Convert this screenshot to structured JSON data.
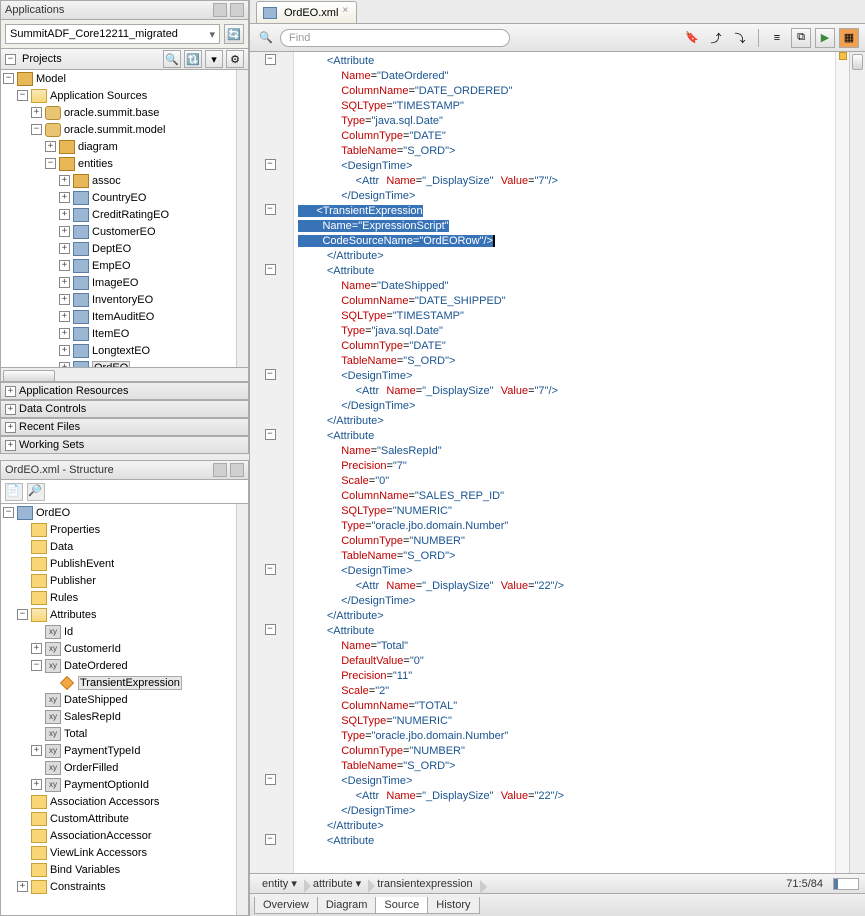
{
  "apps": {
    "title": "Applications",
    "combo": "SummitADF_Core12211_migrated"
  },
  "projects": {
    "title": "Projects",
    "nodes": {
      "model": "Model",
      "appsrc": "Application Sources",
      "base": "oracle.summit.base",
      "modelpkg": "oracle.summit.model",
      "diagram": "diagram",
      "entities": "entities",
      "assoc": "assoc",
      "country": "CountryEO",
      "credit": "CreditRatingEO",
      "customer": "CustomerEO",
      "dept": "DeptEO",
      "emp": "EmpEO",
      "image": "ImageEO",
      "inventory": "InventoryEO",
      "itemaudit": "ItemAuditEO",
      "item": "ItemEO",
      "longtext": "LongtextEO",
      "ord": "OrdEO"
    }
  },
  "bars": {
    "appres": "Application Resources",
    "datactrl": "Data Controls",
    "recent": "Recent Files",
    "working": "Working Sets"
  },
  "structure": {
    "title": "OrdEO.xml - Structure",
    "root": "OrdEO",
    "nodes": {
      "properties": "Properties",
      "data": "Data",
      "publishevent": "PublishEvent",
      "publisher": "Publisher",
      "rules": "Rules",
      "attributes": "Attributes",
      "id": "Id",
      "customerid": "CustomerId",
      "dateordered": "DateOrdered",
      "transient": "TransientExpression",
      "dateshipped": "DateShipped",
      "salesrepid": "SalesRepId",
      "total": "Total",
      "paymenttypeid": "PaymentTypeId",
      "orderfilled": "OrderFilled",
      "paymentoptionid": "PaymentOptionId",
      "assocacc": "Association Accessors",
      "customattr": "CustomAttribute",
      "assocaccessor": "AssociationAccessor",
      "viewlink": "ViewLink Accessors",
      "bindvars": "Bind Variables",
      "constraints": "Constraints"
    }
  },
  "editor": {
    "tab": "OrdEO.xml",
    "find_placeholder": "Find",
    "breadcrumb": {
      "c1": "entity",
      "c2": "attribute",
      "c3": "transientexpression"
    },
    "status": "71:5/84",
    "bottom_tabs": {
      "overview": "Overview",
      "diagram": "Diagram",
      "source": "Source",
      "history": "History"
    }
  },
  "xml": {
    "attr1": {
      "tag": "Attribute",
      "name": "DateOrdered",
      "column": "DATE_ORDERED",
      "sqltype": "TIMESTAMP",
      "type": "java.sql.Date",
      "coltype": "DATE",
      "table": "S_ORD",
      "attr_name": "_DisplaySize",
      "attr_val": "7",
      "te_name": "ExpressionScript",
      "te_code": "OrdEORow"
    },
    "attr2": {
      "name": "DateShipped",
      "column": "DATE_SHIPPED",
      "sqltype": "TIMESTAMP",
      "type": "java.sql.Date",
      "coltype": "DATE",
      "table": "S_ORD",
      "attr_name": "_DisplaySize",
      "attr_val": "7"
    },
    "attr3": {
      "name": "SalesRepId",
      "precision": "7",
      "scale": "0",
      "column": "SALES_REP_ID",
      "sqltype": "NUMERIC",
      "type": "oracle.jbo.domain.Number",
      "coltype": "NUMBER",
      "table": "S_ORD",
      "attr_name": "_DisplaySize",
      "attr_val": "22"
    },
    "attr4": {
      "name": "Total",
      "default": "0",
      "precision": "11",
      "scale": "2",
      "column": "TOTAL",
      "sqltype": "NUMERIC",
      "type": "oracle.jbo.domain.Number",
      "coltype": "NUMBER",
      "table": "S_ORD",
      "attr_name": "_DisplaySize",
      "attr_val": "22"
    },
    "labels": {
      "DesignTime": "DesignTime",
      "Attr": "Attr",
      "Name": "Name",
      "ColumnName": "ColumnName",
      "SQLType": "SQLType",
      "Type": "Type",
      "ColumnType": "ColumnType",
      "TableName": "TableName",
      "Value": "Value",
      "TransientExpression": "TransientExpression",
      "CodeSourceName": "CodeSourceName",
      "Precision": "Precision",
      "Scale": "Scale",
      "DefaultValue": "DefaultValue",
      "Attribute": "Attribute"
    }
  }
}
